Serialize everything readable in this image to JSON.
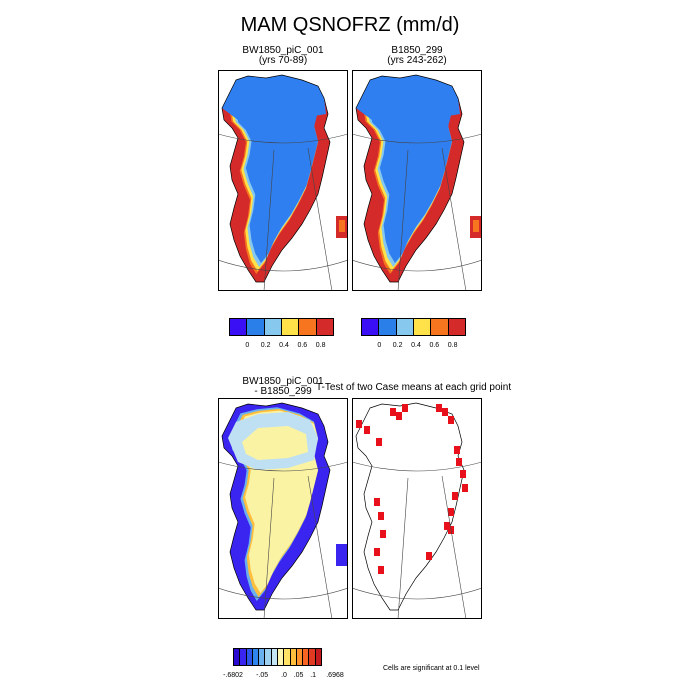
{
  "title": "MAM QSNOFRZ (mm/d)",
  "panels": {
    "case1": {
      "line1": "BW1850_piC_001",
      "line2": "(yrs 70-89)"
    },
    "case2": {
      "line1": "B1850_299",
      "line2": "(yrs 243-262)"
    },
    "diff": {
      "line1": "BW1850_piC_001",
      "line2": "- B1850_299"
    },
    "ttest": {
      "title": "T-Test of two Case means at each grid point"
    }
  },
  "colorbars": {
    "top": {
      "colors": [
        "#3a0ff5",
        "#2b7fe8",
        "#87c8ee",
        "#ffe14a",
        "#f7751f",
        "#d42a2a"
      ],
      "ticks": [
        "0",
        "0.2",
        "0.4",
        "0.6",
        "0.8"
      ]
    },
    "diff": {
      "colors": [
        "#2a0ad0",
        "#3a24f0",
        "#2a55e8",
        "#2f86ee",
        "#6ab0ee",
        "#9ed0f0",
        "#c2e4f3",
        "#fdf6b0",
        "#ffe266",
        "#ffbf3c",
        "#ff922a",
        "#f86422",
        "#e03a22",
        "#c21a1e"
      ],
      "ticks": [
        "-.6802",
        "-.05",
        ".0",
        ".05",
        ".1",
        ".6968"
      ]
    }
  },
  "significance_note": "Cells are significant at 0.1 level",
  "fill_colors": {
    "ocean": "#ffffff",
    "interior": "#2f7ff0",
    "diff_interior": "#fbf3a4",
    "diff_north": "#bfe0f2",
    "sig_cells": "#e8101a"
  }
}
